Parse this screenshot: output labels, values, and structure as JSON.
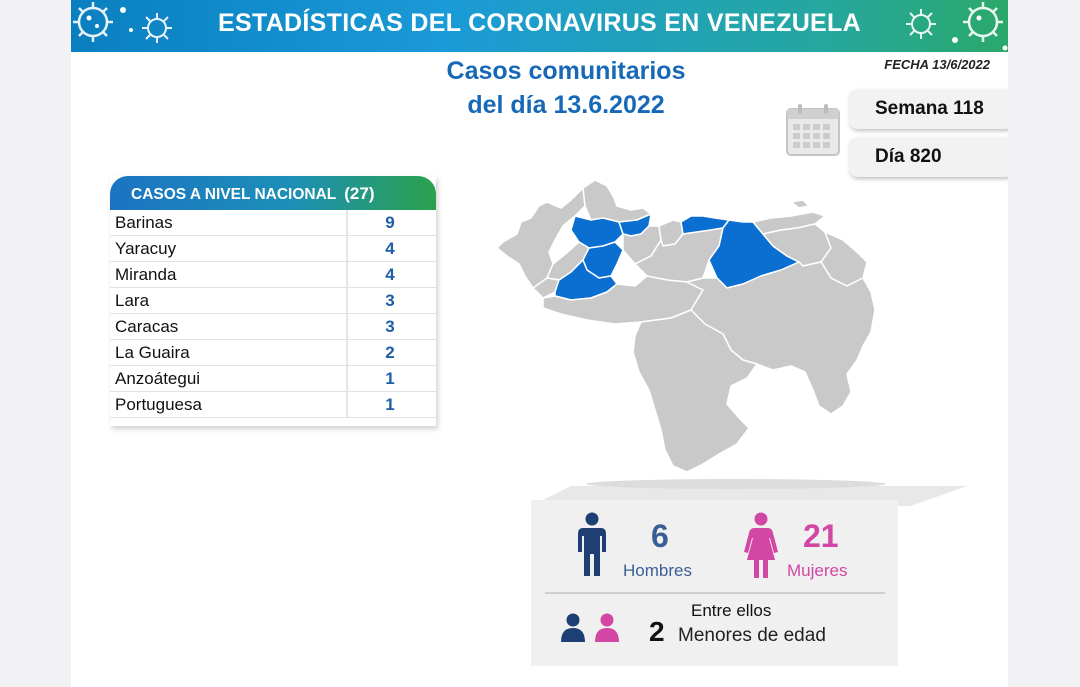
{
  "header": {
    "title": "ESTADÍSTICAS DEL CORONAVIRUS EN VENEZUELA",
    "subtitle_line1": "Casos comunitarios",
    "subtitle_line2": "del día 13.6.2022",
    "fecha": "FECHA 13/6/2022"
  },
  "badges": {
    "semana": "Semana 118",
    "dia": "Día 820"
  },
  "table": {
    "heading": "CASOS A NIVEL NACIONAL",
    "total": "(27)",
    "rows": [
      {
        "name": "Barinas",
        "value": "9"
      },
      {
        "name": "Yaracuy",
        "value": "4"
      },
      {
        "name": "Miranda",
        "value": "4"
      },
      {
        "name": "Lara",
        "value": "3"
      },
      {
        "name": "Caracas",
        "value": "3"
      },
      {
        "name": "La Guaira",
        "value": "2"
      },
      {
        "name": "Anzoátegui",
        "value": "1"
      },
      {
        "name": "Portuguesa",
        "value": "1"
      }
    ]
  },
  "map": {
    "highlighted_states": [
      "Barinas",
      "Yaracuy",
      "Miranda",
      "Lara",
      "Caracas",
      "La Guaira",
      "Anzoátegui",
      "Portuguesa"
    ],
    "highlight_color": "#0a6fd0",
    "base_color": "#c9c9c9"
  },
  "gender": {
    "hombres_count": "6",
    "hombres_label": "Hombres",
    "mujeres_count": "21",
    "mujeres_label": "Mujeres",
    "hombres_color": "#1e3f73",
    "mujeres_color": "#d247a3"
  },
  "minors": {
    "intro": "Entre ellos",
    "count": "2",
    "label": "Menores de edad"
  },
  "icons": [
    "virus-icon",
    "calendar-icon",
    "man-icon",
    "woman-icon",
    "children-icon"
  ]
}
